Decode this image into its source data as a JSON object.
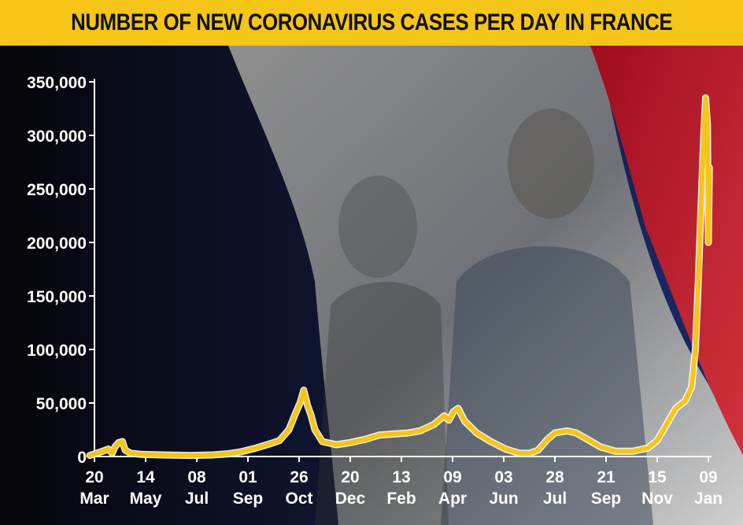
{
  "title": "NUMBER OF NEW CORONAVIRUS CASES PER DAY IN FRANCE",
  "colors": {
    "title_bg": "#f5c518",
    "line": "#f5c518",
    "axis": "#ffffff",
    "flag_blue": "#1a2a6c",
    "flag_white": "#dcdcdc",
    "flag_red": "#c8102e"
  },
  "chart_data": {
    "type": "line",
    "title": "NUMBER OF NEW CORONAVIRUS CASES PER DAY IN FRANCE",
    "xlabel": "",
    "ylabel": "",
    "ylim": [
      0,
      350000
    ],
    "grid": false,
    "yticks": [
      0,
      50000,
      100000,
      150000,
      200000,
      250000,
      300000,
      350000
    ],
    "ytick_labels": [
      "0",
      "50,000",
      "100,000",
      "150,000",
      "200,000",
      "250,000",
      "300,000",
      "350,000"
    ],
    "xticks": [
      {
        "date": "2020-03-20",
        "day": "20",
        "month": "Mar"
      },
      {
        "date": "2020-05-14",
        "day": "14",
        "month": "May"
      },
      {
        "date": "2020-07-08",
        "day": "08",
        "month": "Jul"
      },
      {
        "date": "2020-09-01",
        "day": "01",
        "month": "Sep"
      },
      {
        "date": "2020-10-26",
        "day": "26",
        "month": "Oct"
      },
      {
        "date": "2020-12-20",
        "day": "20",
        "month": "Dec"
      },
      {
        "date": "2021-02-13",
        "day": "13",
        "month": "Feb"
      },
      {
        "date": "2021-04-09",
        "day": "09",
        "month": "Apr"
      },
      {
        "date": "2021-06-03",
        "day": "03",
        "month": "Jun"
      },
      {
        "date": "2021-07-28",
        "day": "28",
        "month": "Jul"
      },
      {
        "date": "2021-09-21",
        "day": "21",
        "month": "Sep"
      },
      {
        "date": "2021-11-15",
        "day": "15",
        "month": "Nov"
      },
      {
        "date": "2022-01-09",
        "day": "09",
        "month": "Jan"
      }
    ],
    "series": [
      {
        "points": [
          [
            "2020-03-15",
            1000
          ],
          [
            "2020-03-22",
            3000
          ],
          [
            "2020-03-29",
            5000
          ],
          [
            "2020-04-04",
            7000
          ],
          [
            "2020-04-08",
            3000
          ],
          [
            "2020-04-11",
            9000
          ],
          [
            "2020-04-15",
            13000
          ],
          [
            "2020-04-19",
            14000
          ],
          [
            "2020-04-22",
            6000
          ],
          [
            "2020-04-28",
            3000
          ],
          [
            "2020-05-10",
            2000
          ],
          [
            "2020-06-01",
            1500
          ],
          [
            "2020-07-01",
            1000
          ],
          [
            "2020-07-25",
            1500
          ],
          [
            "2020-08-10",
            2500
          ],
          [
            "2020-08-25",
            4500
          ],
          [
            "2020-09-10",
            8000
          ],
          [
            "2020-09-25",
            12000
          ],
          [
            "2020-10-05",
            15000
          ],
          [
            "2020-10-15",
            25000
          ],
          [
            "2020-10-22",
            40000
          ],
          [
            "2020-10-27",
            50000
          ],
          [
            "2020-10-31",
            62000
          ],
          [
            "2020-11-04",
            48000
          ],
          [
            "2020-11-08",
            38000
          ],
          [
            "2020-11-12",
            25000
          ],
          [
            "2020-11-20",
            14000
          ],
          [
            "2020-12-05",
            11000
          ],
          [
            "2020-12-20",
            13000
          ],
          [
            "2021-01-05",
            16000
          ],
          [
            "2021-01-20",
            20000
          ],
          [
            "2021-02-05",
            21000
          ],
          [
            "2021-02-20",
            22000
          ],
          [
            "2021-03-05",
            24000
          ],
          [
            "2021-03-20",
            30000
          ],
          [
            "2021-03-31",
            38000
          ],
          [
            "2021-04-05",
            34000
          ],
          [
            "2021-04-10",
            42000
          ],
          [
            "2021-04-15",
            45000
          ],
          [
            "2021-04-22",
            33000
          ],
          [
            "2021-05-05",
            22000
          ],
          [
            "2021-05-20",
            14000
          ],
          [
            "2021-06-05",
            7000
          ],
          [
            "2021-06-20",
            3000
          ],
          [
            "2021-07-01",
            3000
          ],
          [
            "2021-07-10",
            6000
          ],
          [
            "2021-07-20",
            16000
          ],
          [
            "2021-07-28",
            22000
          ],
          [
            "2021-08-10",
            24000
          ],
          [
            "2021-08-20",
            22000
          ],
          [
            "2021-09-01",
            16000
          ],
          [
            "2021-09-15",
            9000
          ],
          [
            "2021-10-01",
            5000
          ],
          [
            "2021-10-20",
            5000
          ],
          [
            "2021-11-05",
            8000
          ],
          [
            "2021-11-15",
            15000
          ],
          [
            "2021-11-25",
            30000
          ],
          [
            "2021-12-05",
            45000
          ],
          [
            "2021-12-15",
            52000
          ],
          [
            "2021-12-22",
            65000
          ],
          [
            "2021-12-26",
            100000
          ],
          [
            "2021-12-29",
            160000
          ],
          [
            "2022-01-01",
            230000
          ],
          [
            "2022-01-04",
            300000
          ],
          [
            "2022-01-06",
            335000
          ],
          [
            "2022-01-08",
            310000
          ],
          [
            "2022-01-09",
            200000
          ],
          [
            "2022-01-10",
            270000
          ]
        ]
      }
    ]
  }
}
